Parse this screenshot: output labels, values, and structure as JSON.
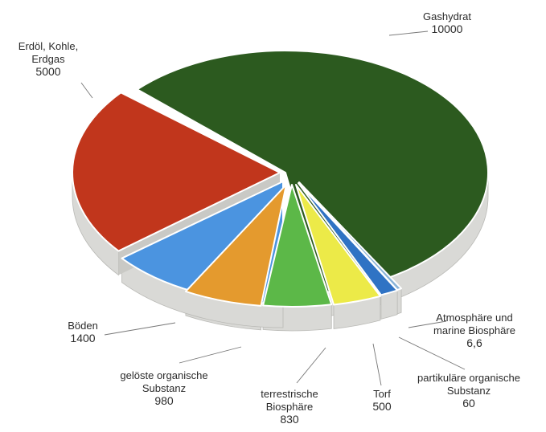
{
  "chart_data": {
    "type": "pie",
    "style": "3d-exploded",
    "title": "",
    "slices": [
      {
        "key": "gashydrat",
        "label_lines": [
          "Gashydrat"
        ],
        "value_text": "10000",
        "value": 10000,
        "color": "#2c5a1f"
      },
      {
        "key": "erdoel",
        "label_lines": [
          "Erdöl, Kohle,",
          "Erdgas"
        ],
        "value_text": "5000",
        "value": 5000,
        "color": "#c1361c"
      },
      {
        "key": "boeden",
        "label_lines": [
          "Böden"
        ],
        "value_text": "1400",
        "value": 1400,
        "color": "#4b94e0"
      },
      {
        "key": "geloeste",
        "label_lines": [
          "gelöste organische",
          "Substanz"
        ],
        "value_text": "980",
        "value": 980,
        "color": "#e49a2e"
      },
      {
        "key": "terrestrische",
        "label_lines": [
          "terrestrische",
          "Biosphäre"
        ],
        "value_text": "830",
        "value": 830,
        "color": "#5cb848"
      },
      {
        "key": "torf",
        "label_lines": [
          "Torf"
        ],
        "value_text": "500",
        "value": 500,
        "color": "#ecea48"
      },
      {
        "key": "partikulaere",
        "label_lines": [
          "partikuläre organische",
          "Substanz"
        ],
        "value_text": "60",
        "value": 60,
        "color": "#2f73c4"
      },
      {
        "key": "atmosphaere",
        "label_lines": [
          "Atmosphäre und",
          "marine Biosphäre"
        ],
        "value_text": "6,6",
        "value": 6.6,
        "color": "#8ab4d8"
      }
    ],
    "side_color": "#d9d9d6",
    "legend": "none"
  }
}
